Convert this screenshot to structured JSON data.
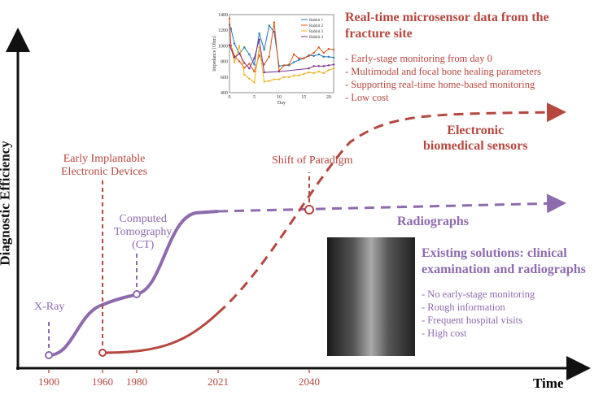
{
  "axes": {
    "y_label": "Diagnostic Efficiency",
    "x_label": "Time",
    "ticks": [
      "1900",
      "1960",
      "1980",
      "2021",
      "2040"
    ]
  },
  "milestones": {
    "xray": "X-Ray",
    "ct": "Computed Tomography (CT)",
    "ct_l1": "Computed",
    "ct_l2": "Tomography",
    "ct_l3": "(CT)",
    "eied_l1": "Early Implantable",
    "eied_l2": "Electronic Devices",
    "shift": "Shift of Paradigm"
  },
  "curves": {
    "sensors_l1": "Electronic",
    "sensors_l2": "biomedical sensors",
    "radiographs": "Radiographs"
  },
  "sensor_box": {
    "title_l1": "Real-time microsensor data from the",
    "title_l2": "fracture site",
    "bullets": [
      "- Early-stage monitoring from day 0",
      "- Multimodal and focal bone healing parameters",
      "- Supporting real-time home-based monitoring",
      "- Low cost"
    ]
  },
  "existing_box": {
    "title_l1": "Existing solutions: clinical",
    "title_l2": "examination and radiographs",
    "bullets": [
      "- No early-stage monitoring",
      "- Rough information",
      "- Frequent hospital visits",
      "- High cost"
    ]
  },
  "colors": {
    "red": "#b5473f",
    "purple": "#8e6aae"
  },
  "chart_data": {
    "type": "line",
    "xlabel": "Day",
    "ylabel": "Impedance [Ohm]",
    "xlim": [
      0,
      21
    ],
    "ylim": [
      400,
      1400
    ],
    "xticks": [
      0,
      5,
      10,
      15,
      20
    ],
    "yticks": [
      400,
      600,
      800,
      1000,
      1200,
      1400
    ],
    "legend": "top-right",
    "series": [
      {
        "name": "Rabbit 1",
        "color": "#1f77b4",
        "x": [
          0,
          0.3,
          1,
          2,
          3,
          4,
          5,
          6,
          7,
          8,
          9,
          10,
          11,
          12,
          13,
          14,
          15,
          16,
          17,
          18,
          19,
          20,
          21
        ],
        "y": [
          1270,
          1220,
          1030,
          900,
          980,
          890,
          760,
          1160,
          950,
          1260,
          1180,
          740,
          750,
          750,
          790,
          820,
          840,
          880,
          870,
          890,
          860,
          860,
          850
        ]
      },
      {
        "name": "Rabbit 2",
        "color": "#d95319",
        "x": [
          0,
          0.3,
          1,
          2,
          3,
          4,
          5,
          6,
          7,
          8,
          9,
          10,
          11,
          12,
          13,
          14,
          15,
          16,
          17,
          18,
          19,
          20,
          21
        ],
        "y": [
          1350,
          1000,
          870,
          800,
          720,
          770,
          670,
          880,
          760,
          860,
          1300,
          680,
          750,
          760,
          890,
          840,
          840,
          870,
          910,
          980,
          910,
          960,
          950
        ]
      },
      {
        "name": "Rabbit 3",
        "color": "#edb120",
        "x": [
          0,
          0.3,
          1,
          2,
          3,
          4,
          5,
          6,
          7,
          8,
          9,
          10,
          11,
          12,
          13,
          14,
          15,
          16,
          17,
          18,
          19,
          20,
          21
        ],
        "y": [
          1010,
          980,
          790,
          1000,
          630,
          580,
          530,
          980,
          540,
          550,
          570,
          570,
          600,
          600,
          620,
          620,
          640,
          660,
          650,
          670,
          650,
          690,
          710
        ]
      },
      {
        "name": "Rabbit 4",
        "color": "#7e2f8e",
        "x": [
          0,
          1,
          2,
          3,
          4,
          5,
          6,
          7,
          10,
          16,
          17,
          18,
          19,
          20,
          21
        ],
        "y": [
          1010,
          850,
          900,
          780,
          710,
          840,
          1080,
          660,
          670,
          710,
          740,
          740,
          740,
          750,
          760
        ]
      }
    ]
  }
}
